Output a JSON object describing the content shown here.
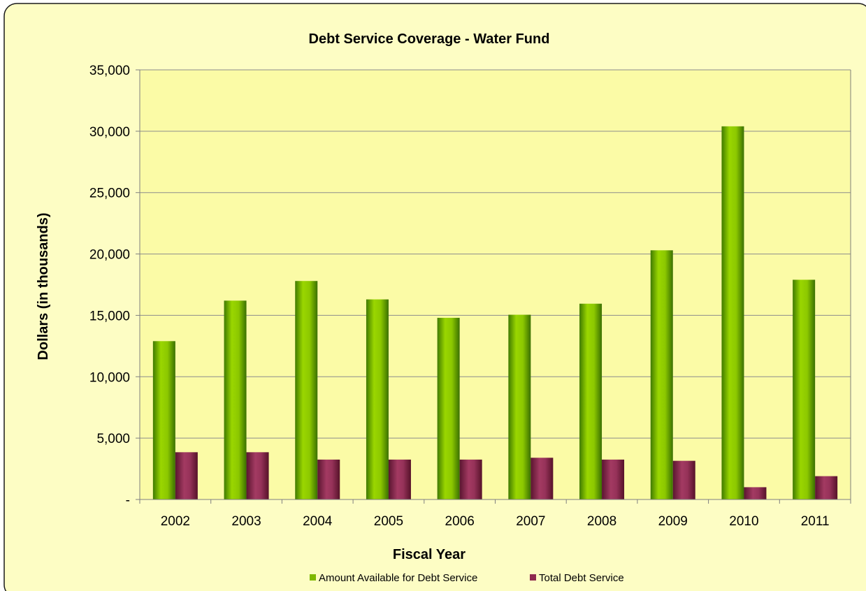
{
  "chart_data": {
    "type": "bar",
    "title": "Debt Service Coverage - Water Fund",
    "xlabel": "Fiscal Year",
    "ylabel": "Dollars (in thousands)",
    "categories": [
      "2002",
      "2003",
      "2004",
      "2005",
      "2006",
      "2007",
      "2008",
      "2009",
      "2010",
      "2011"
    ],
    "series": [
      {
        "name": "Amount Available for Debt Service",
        "color": "#7fb800",
        "values": [
          12900,
          16200,
          17800,
          16300,
          14800,
          15050,
          15950,
          20300,
          30400,
          17900
        ]
      },
      {
        "name": "Total Debt Service",
        "color": "#8e2a4e",
        "values": [
          3850,
          3850,
          3250,
          3250,
          3250,
          3400,
          3250,
          3150,
          1000,
          1900
        ]
      }
    ],
    "ylim": [
      0,
      35000
    ],
    "yticks": [
      0,
      5000,
      10000,
      15000,
      20000,
      25000,
      30000,
      35000
    ],
    "ytick_labels": [
      "-",
      "5,000",
      "10,000",
      "15,000",
      "20,000",
      "25,000",
      "30,000",
      "35,000"
    ],
    "grid": true,
    "legend_position": "bottom"
  }
}
